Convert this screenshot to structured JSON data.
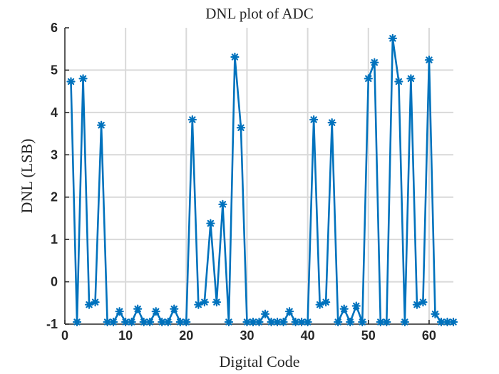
{
  "chart_data": {
    "type": "line",
    "title": "DNL plot of ADC",
    "xlabel": "Digital Code",
    "ylabel": "DNL (LSB)",
    "xlim": [
      0,
      64
    ],
    "ylim": [
      -1,
      6
    ],
    "xticks": [
      0,
      10,
      20,
      30,
      40,
      50,
      60
    ],
    "yticks": [
      -1,
      0,
      1,
      2,
      3,
      4,
      5,
      6
    ],
    "grid": true,
    "series_color": "#0072BD",
    "marker": "asterisk",
    "series": [
      {
        "x": [
          1,
          2,
          3,
          4,
          5,
          6,
          7,
          8,
          9,
          10,
          11,
          12,
          13,
          14,
          15,
          16,
          17,
          18,
          19,
          20,
          21,
          22,
          23,
          24,
          25,
          26,
          27,
          28,
          29,
          30,
          31,
          32,
          33,
          34,
          35,
          36,
          37,
          38,
          39,
          40,
          41,
          42,
          43,
          44,
          45,
          46,
          47,
          48,
          49,
          50,
          51,
          52,
          53,
          54,
          55,
          56,
          57,
          58,
          59,
          60,
          61,
          62,
          63,
          64
        ],
        "values": [
          4.73,
          -0.95,
          4.8,
          -0.54,
          -0.48,
          3.7,
          -0.95,
          -0.95,
          -0.7,
          -0.95,
          -0.95,
          -0.64,
          -0.95,
          -0.95,
          -0.7,
          -0.95,
          -0.95,
          -0.64,
          -0.95,
          -0.95,
          3.83,
          -0.54,
          -0.48,
          1.38,
          -0.48,
          1.83,
          -0.95,
          5.31,
          3.64,
          -0.95,
          -0.95,
          -0.95,
          -0.76,
          -0.95,
          -0.95,
          -0.95,
          -0.7,
          -0.95,
          -0.95,
          -0.95,
          3.83,
          -0.54,
          -0.48,
          3.76,
          -0.95,
          -0.64,
          -0.95,
          -0.57,
          -0.95,
          4.8,
          5.18,
          -0.95,
          -0.95,
          5.75,
          4.73,
          -0.95,
          4.8,
          -0.54,
          -0.48,
          5.24,
          -0.76,
          -0.95,
          -0.95,
          -0.95
        ]
      }
    ]
  }
}
